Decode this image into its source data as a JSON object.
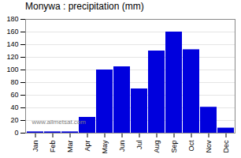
{
  "chart_data": {
    "type": "bar",
    "title": "Monywa : precipitation (mm)",
    "categories": [
      "Jan",
      "Feb",
      "Mar",
      "Apr",
      "May",
      "Jun",
      "Jul",
      "Aug",
      "Sep",
      "Oct",
      "Nov",
      "Dec"
    ],
    "values": [
      2,
      2,
      2,
      25,
      100,
      105,
      70,
      130,
      160,
      132,
      41,
      8
    ],
    "color": "#0000dd",
    "ylim": [
      0,
      180
    ],
    "yticks": [
      0,
      20,
      40,
      60,
      80,
      100,
      120,
      140,
      160,
      180
    ],
    "grid": true,
    "annotations": [
      "www.allmetsat.com"
    ]
  }
}
